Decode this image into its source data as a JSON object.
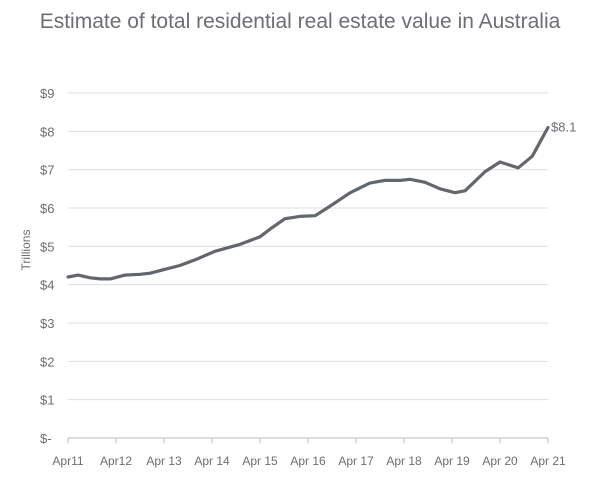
{
  "chart_data": {
    "type": "line",
    "title": "Estimate of total residential real estate value in Australia",
    "ylabel": "Trillions",
    "xlabel": "",
    "ylim": [
      0,
      9
    ],
    "xlim": [
      2011,
      2021
    ],
    "grid": true,
    "yticks": [
      "$-",
      "$1",
      "$2",
      "$3",
      "$4",
      "$5",
      "$6",
      "$7",
      "$8",
      "$9"
    ],
    "xticks": [
      "Apr11",
      "Apr12",
      "Apr 13",
      "Apr 14",
      "Apr 15",
      "Apr 16",
      "Apr 17",
      "Apr 18",
      "Apr 19",
      "Apr 20",
      "Apr 21"
    ],
    "end_label": "$8.1",
    "line_color": "#62676c",
    "series": [
      {
        "name": "Total residential real estate value",
        "x": [
          2011.0,
          2011.21,
          2011.46,
          2011.67,
          2011.88,
          2012.19,
          2012.5,
          2012.71,
          2013.02,
          2013.33,
          2013.65,
          2014.06,
          2014.38,
          2014.58,
          2014.79,
          2015.0,
          2015.21,
          2015.52,
          2015.83,
          2016.15,
          2016.46,
          2016.88,
          2017.29,
          2017.6,
          2017.92,
          2018.13,
          2018.44,
          2018.75,
          2019.06,
          2019.27,
          2019.69,
          2020.0,
          2020.38,
          2020.67,
          2021.0
        ],
        "y": [
          4.2,
          4.25,
          4.18,
          4.15,
          4.15,
          4.25,
          4.27,
          4.3,
          4.4,
          4.5,
          4.65,
          4.87,
          4.98,
          5.05,
          5.15,
          5.25,
          5.45,
          5.72,
          5.78,
          5.8,
          6.05,
          6.4,
          6.65,
          6.72,
          6.72,
          6.75,
          6.67,
          6.5,
          6.4,
          6.45,
          6.95,
          7.2,
          7.05,
          7.35,
          8.1
        ]
      }
    ]
  }
}
